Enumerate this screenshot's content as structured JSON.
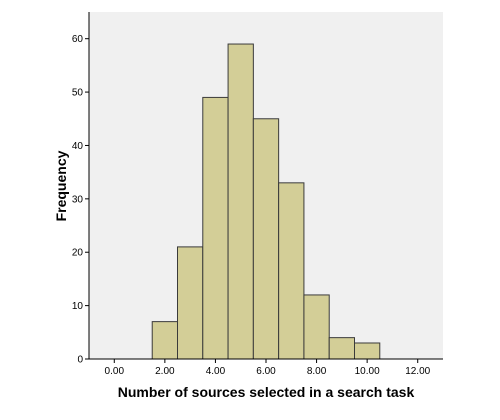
{
  "chart_data": {
    "type": "bar",
    "title": "",
    "xlabel": "Number of sources selected in a search task",
    "ylabel": "Frequency",
    "bin_width": 1,
    "bins": [
      {
        "start": 1.5,
        "end": 2.5,
        "value": 7
      },
      {
        "start": 2.5,
        "end": 3.5,
        "value": 21
      },
      {
        "start": 3.5,
        "end": 4.5,
        "value": 49
      },
      {
        "start": 4.5,
        "end": 5.5,
        "value": 59
      },
      {
        "start": 5.5,
        "end": 6.5,
        "value": 45
      },
      {
        "start": 6.5,
        "end": 7.5,
        "value": 33
      },
      {
        "start": 7.5,
        "end": 8.5,
        "value": 12
      },
      {
        "start": 8.5,
        "end": 9.5,
        "value": 4
      },
      {
        "start": 9.5,
        "end": 10.5,
        "value": 3
      }
    ],
    "xlim": [
      -1.0,
      13.0
    ],
    "ylim": [
      0,
      65
    ],
    "x_ticks": [
      {
        "value": 0,
        "label": "0.00"
      },
      {
        "value": 2,
        "label": "2.00"
      },
      {
        "value": 4,
        "label": "4.00"
      },
      {
        "value": 6,
        "label": "6.00"
      },
      {
        "value": 8,
        "label": "8.00"
      },
      {
        "value": 10,
        "label": "10.00"
      },
      {
        "value": 12,
        "label": "12.00"
      }
    ],
    "y_ticks": [
      {
        "value": 0,
        "label": "0"
      },
      {
        "value": 10,
        "label": "10"
      },
      {
        "value": 20,
        "label": "20"
      },
      {
        "value": 30,
        "label": "30"
      },
      {
        "value": 40,
        "label": "40"
      },
      {
        "value": 50,
        "label": "50"
      },
      {
        "value": 60,
        "label": "60"
      }
    ],
    "grid": false,
    "colors": {
      "plot_background": "#f0f0f0",
      "bar_fill": "#d3ce97",
      "bar_stroke": "#3a3a3a",
      "axis": "#000000"
    }
  }
}
